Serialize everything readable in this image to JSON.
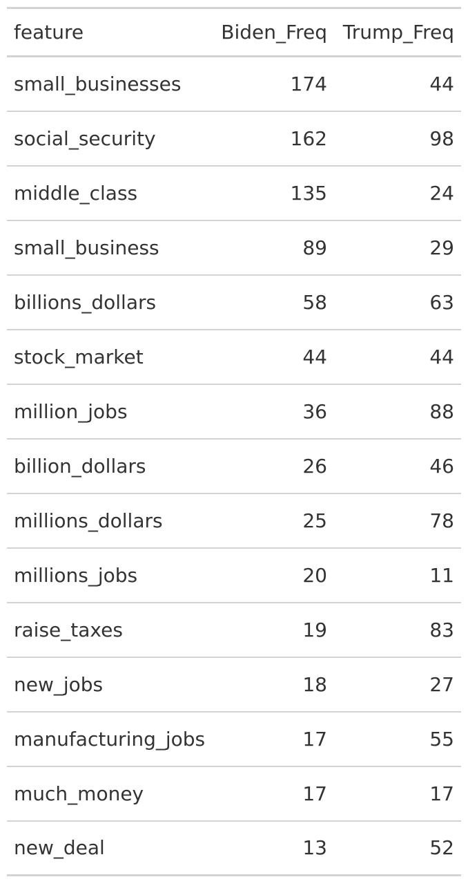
{
  "table": {
    "columns": [
      "feature",
      "Biden_Freq",
      "Trump_Freq"
    ],
    "rows": [
      {
        "feature": "small_businesses",
        "biden": "174",
        "trump": "44"
      },
      {
        "feature": "social_security",
        "biden": "162",
        "trump": "98"
      },
      {
        "feature": "middle_class",
        "biden": "135",
        "trump": "24"
      },
      {
        "feature": "small_business",
        "biden": "89",
        "trump": "29"
      },
      {
        "feature": "billions_dollars",
        "biden": "58",
        "trump": "63"
      },
      {
        "feature": "stock_market",
        "biden": "44",
        "trump": "44"
      },
      {
        "feature": "million_jobs",
        "biden": "36",
        "trump": "88"
      },
      {
        "feature": "billion_dollars",
        "biden": "26",
        "trump": "46"
      },
      {
        "feature": "millions_dollars",
        "biden": "25",
        "trump": "78"
      },
      {
        "feature": "millions_jobs",
        "biden": "20",
        "trump": "11"
      },
      {
        "feature": "raise_taxes",
        "biden": "19",
        "trump": "83"
      },
      {
        "feature": "new_jobs",
        "biden": "18",
        "trump": "27"
      },
      {
        "feature": "manufacturing_jobs",
        "biden": "17",
        "trump": "55"
      },
      {
        "feature": "much_money",
        "biden": "17",
        "trump": "17"
      },
      {
        "feature": "new_deal",
        "biden": "13",
        "trump": "52"
      }
    ]
  },
  "colors": {
    "text": "#333333",
    "rule": "#d3d3d3",
    "background": "#ffffff"
  }
}
